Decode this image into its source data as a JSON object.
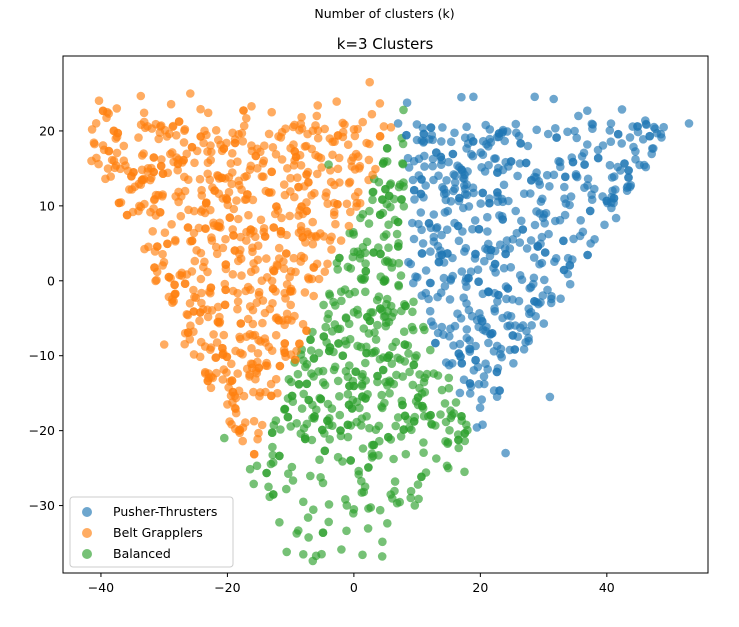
{
  "chart_data": {
    "type": "scatter",
    "suptitle": "Number of clusters (k)",
    "title": "k=3 Clusters",
    "xlabel": "",
    "ylabel": "",
    "xlim": [
      -46,
      56
    ],
    "ylim": [
      -39,
      30
    ],
    "xticks": [
      -40,
      -20,
      0,
      20,
      40
    ],
    "yticks": [
      -30,
      -20,
      -10,
      0,
      10,
      20
    ],
    "xtick_labels": [
      "−40",
      "−20",
      "0",
      "20",
      "40"
    ],
    "ytick_labels": [
      "−30",
      "−20",
      "−10",
      "0",
      "10",
      "20"
    ],
    "grid": false,
    "legend_position": "lower-left",
    "point_alpha": 0.65,
    "series": [
      {
        "name": "Pusher-Thrusters",
        "color": "#1f77b4",
        "center": [
          28,
          3
        ],
        "spread": [
          9,
          9
        ],
        "count": 520,
        "notable_points": [
          [
            17,
            24.5
          ],
          [
            53,
            21
          ],
          [
            49,
            20.5
          ],
          [
            35.5,
            22
          ],
          [
            24,
            -23
          ],
          [
            31,
            -15.5
          ],
          [
            7,
            21
          ]
        ]
      },
      {
        "name": "Belt Grapplers",
        "color": "#ff7f0e",
        "center": [
          -22,
          4
        ],
        "spread": [
          9,
          8
        ],
        "count": 560,
        "notable_points": [
          [
            2.5,
            26.5
          ],
          [
            -41.5,
            16
          ],
          [
            -37.5,
            23
          ],
          [
            -39,
            22.5
          ],
          [
            -13,
            22.5
          ],
          [
            -30,
            -8.5
          ],
          [
            -20,
            -16.5
          ]
        ]
      },
      {
        "name": "Balanced",
        "color": "#2ca02c",
        "center": [
          0,
          -6
        ],
        "spread": [
          8,
          9
        ],
        "count": 760,
        "notable_points": [
          [
            -8,
            -36.5
          ],
          [
            0,
            -30.5
          ],
          [
            -8,
            -29.5
          ],
          [
            -13.5,
            -27.5
          ],
          [
            17.5,
            -25.5
          ],
          [
            -20.5,
            -21
          ],
          [
            -4,
            15.5
          ]
        ]
      }
    ]
  }
}
